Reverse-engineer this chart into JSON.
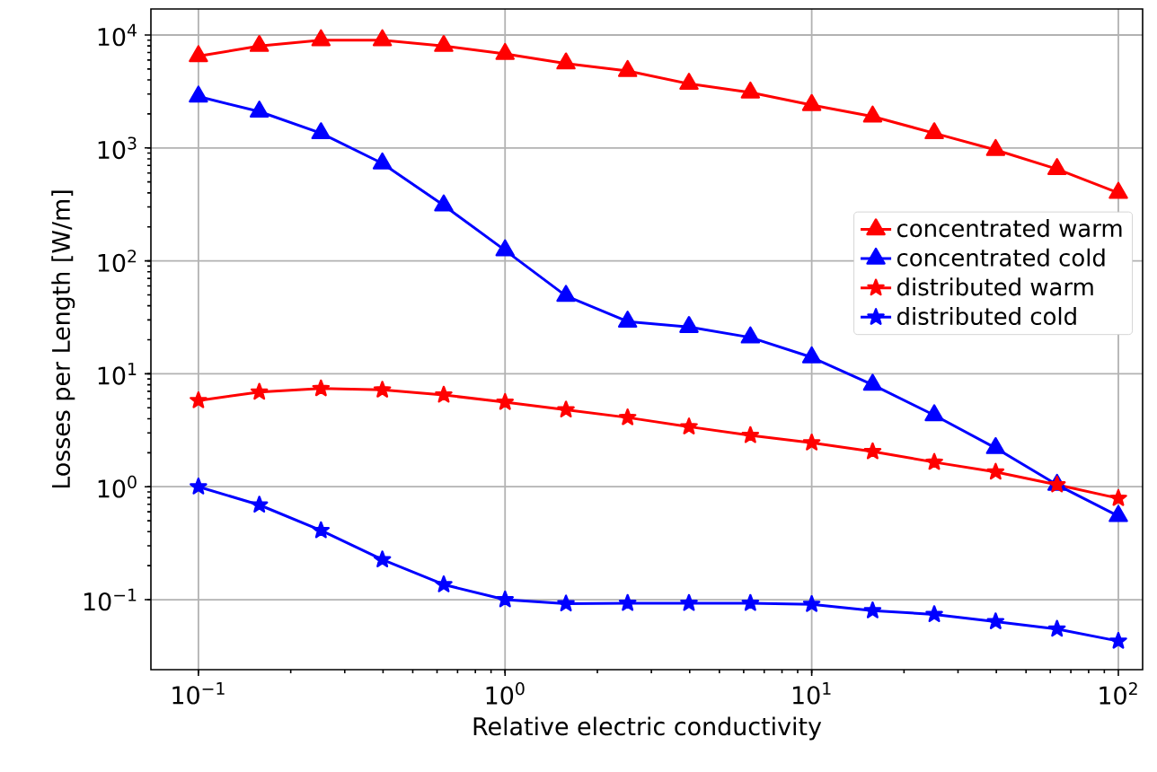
{
  "chart_data": {
    "type": "line",
    "xlabel": "Relative electric conductivity",
    "ylabel": "Losses per Length [W/m]",
    "x": [
      0.1,
      0.158,
      0.251,
      0.398,
      0.631,
      1,
      1.58,
      2.51,
      3.98,
      6.31,
      10,
      15.8,
      25.1,
      39.8,
      63.1,
      100
    ],
    "series": [
      {
        "name": "concentrated warm",
        "color": "#ff0000",
        "marker": "triangle",
        "values": [
          6500,
          8000,
          9000,
          9000,
          8000,
          6800,
          5600,
          4800,
          3700,
          3100,
          2400,
          1900,
          1350,
          960,
          650,
          400
        ]
      },
      {
        "name": "concentrated cold",
        "color": "#0000ff",
        "marker": "triangle",
        "values": [
          2850,
          2100,
          1350,
          730,
          310,
          124,
          49,
          29,
          26,
          21,
          14,
          8,
          4.3,
          2.2,
          1.04,
          0.55
        ]
      },
      {
        "name": "distributed warm",
        "color": "#ff0000",
        "marker": "star",
        "values": [
          5.8,
          6.9,
          7.4,
          7.2,
          6.5,
          5.6,
          4.8,
          4.1,
          3.4,
          2.85,
          2.45,
          2.05,
          1.65,
          1.35,
          1.04,
          0.79
        ]
      },
      {
        "name": "distributed cold",
        "color": "#0000ff",
        "marker": "star",
        "values": [
          1.0,
          0.69,
          0.41,
          0.226,
          0.136,
          0.1,
          0.092,
          0.093,
          0.093,
          0.093,
          0.091,
          0.08,
          0.074,
          0.064,
          0.055,
          0.043
        ]
      }
    ],
    "log": "xy",
    "grid": true,
    "legend": "right",
    "line_style": "solid",
    "xlim": [
      0.07,
      120
    ],
    "ylim": [
      0.024,
      17000
    ],
    "xticks": [
      {
        "value": 0.1,
        "label": "10$^{−1}$"
      },
      {
        "value": 1,
        "label": "10$^{0}$"
      },
      {
        "value": 10,
        "label": "10$^{1}$"
      },
      {
        "value": 100,
        "label": "10$^{2}$"
      }
    ],
    "yticks": [
      {
        "value": 0.1,
        "label": "10$^{−1}$"
      },
      {
        "value": 1,
        "label": "10$^{0}$"
      },
      {
        "value": 10,
        "label": "10$^{1}$"
      },
      {
        "value": 100,
        "label": "10$^{2}$"
      },
      {
        "value": 1000,
        "label": "10$^{3}$"
      },
      {
        "value": 10000,
        "label": "10$^{4}$"
      }
    ]
  }
}
